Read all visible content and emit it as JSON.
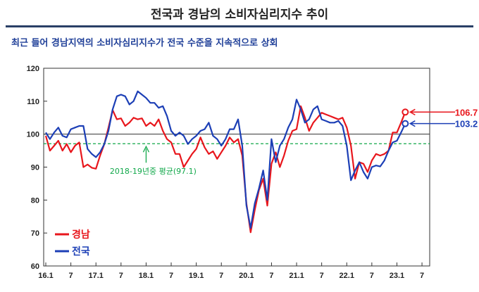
{
  "title": "전국과 경남의 소비자심리지수 추이",
  "subtitle": "최근 들어 경남지역의 소비자심리지수가 전국 수준을 지속적으로 상회",
  "chart_data": {
    "type": "line",
    "ylim": [
      60,
      120
    ],
    "yticks": [
      60,
      70,
      80,
      90,
      100,
      110,
      120
    ],
    "x_tick_labels": [
      "16.1",
      "7",
      "17.1",
      "7",
      "18.1",
      "7",
      "19.1",
      "7",
      "20.1",
      "7",
      "21.1",
      "7",
      "22.1",
      "7",
      "23.1",
      "7"
    ],
    "x_count": 92,
    "reference_line": {
      "value": 100
    },
    "average_line": {
      "value": 97.1,
      "label": "2018-19년중 평균(97.1)",
      "color": "#11a84a"
    },
    "grid": false,
    "legend_position": "bottom-left",
    "series": [
      {
        "name": "경남",
        "color": "#e8161c",
        "end_label": "106.7",
        "values": [
          99.5,
          95.0,
          96.5,
          98.0,
          95.0,
          97.0,
          94.5,
          96.5,
          97.5,
          90.0,
          90.8,
          89.8,
          89.5,
          93.5,
          97.0,
          102.0,
          107.3,
          104.5,
          104.8,
          102.5,
          103.5,
          105.0,
          104.5,
          104.8,
          102.5,
          103.5,
          102.5,
          104.5,
          101.0,
          98.5,
          97.5,
          94.0,
          94.0,
          90.0,
          92.0,
          94.0,
          95.5,
          99.0,
          96.0,
          94.0,
          94.8,
          92.5,
          94.5,
          96.5,
          99.0,
          97.5,
          98.5,
          93.5,
          79.0,
          70.2,
          77.0,
          83.0,
          86.5,
          78.3,
          91.0,
          94.5,
          90.0,
          93.5,
          98.0,
          101.0,
          101.5,
          108.5,
          105.0,
          101.0,
          103.5,
          105.0,
          106.5,
          106.0,
          105.5,
          105.0,
          104.5,
          105.0,
          102.0,
          96.5,
          86.5,
          91.5,
          91.0,
          88.5,
          92.0,
          94.0,
          93.5,
          94.0,
          95.0,
          100.5,
          100.5,
          103.5,
          106.7
        ]
      },
      {
        "name": "전국",
        "color": "#1c3fb6",
        "end_label": "103.2",
        "values": [
          100.5,
          98.5,
          100.5,
          102.0,
          99.5,
          99.0,
          101.5,
          102.0,
          102.5,
          102.5,
          95.5,
          94.0,
          93.0,
          94.5,
          97.0,
          101.0,
          107.5,
          111.5,
          112.0,
          111.5,
          109.0,
          110.0,
          113.0,
          112.0,
          111.0,
          109.5,
          109.5,
          108.0,
          108.5,
          105.5,
          101.0,
          99.5,
          100.5,
          99.5,
          97.0,
          98.5,
          99.5,
          101.0,
          101.5,
          103.5,
          99.5,
          98.5,
          96.5,
          98.5,
          101.5,
          101.5,
          104.5,
          96.5,
          78.4,
          71.5,
          79.0,
          83.5,
          89.0,
          80.0,
          98.5,
          91.5,
          96.5,
          98.5,
          102.0,
          104.5,
          110.5,
          107.5,
          103.5,
          104.5,
          107.5,
          108.5,
          104.5,
          104.0,
          103.5,
          103.5,
          104.0,
          102.5,
          96.5,
          86.0,
          89.0,
          91.5,
          88.5,
          86.5,
          90.0,
          90.5,
          90.2,
          92.0,
          95.0,
          97.5,
          98.0,
          100.5,
          103.2
        ]
      }
    ]
  }
}
